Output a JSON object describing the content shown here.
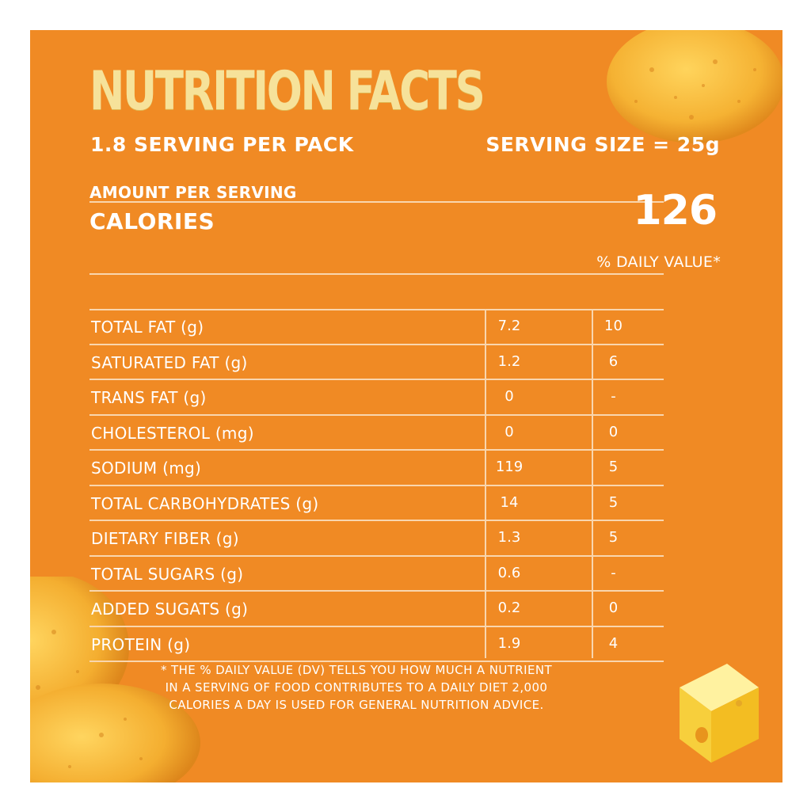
{
  "label": {
    "title": "NUTRITION FACTS",
    "servings_per_pack": "1.8 SERVING PER PACK",
    "serving_size": "SERVING SIZE = 25g",
    "amount_per_serving": "AMOUNT PER SERVING",
    "calories_label": "CALORIES",
    "calories_value": "126",
    "daily_value_header": "% DAILY VALUE*",
    "rows": [
      {
        "name": "TOTAL FAT (g)",
        "amount": "7.2",
        "dv": "10"
      },
      {
        "name": "SATURATED FAT (g)",
        "amount": "1.2",
        "dv": "6"
      },
      {
        "name": "TRANS FAT (g)",
        "amount": "0",
        "dv": "-"
      },
      {
        "name": "CHOLESTEROL (mg)",
        "amount": "0",
        "dv": "0"
      },
      {
        "name": "SODIUM (mg)",
        "amount": "119",
        "dv": "5"
      },
      {
        "name": "TOTAL CARBOHYDRATES (g)",
        "amount": "14",
        "dv": "5"
      },
      {
        "name": "DIETARY FIBER (g)",
        "amount": "1.3",
        "dv": "5"
      },
      {
        "name": "TOTAL SUGARS (g)",
        "amount": "0.6",
        "dv": "-"
      },
      {
        "name": "ADDED SUGATS (g)",
        "amount": "0.2",
        "dv": "0"
      },
      {
        "name": "PROTEIN (g)",
        "amount": "1.9",
        "dv": "4"
      }
    ],
    "footnote": [
      "* THE % DAILY VALUE (DV) TELLS YOU HOW MUCH A NUTRIENT",
      "IN A SERVING OF FOOD CONTRIBUTES TO A DAILY DIET 2,000",
      "CALORIES A DAY IS USED FOR GENERAL NUTRITION ADVICE."
    ]
  },
  "colors": {
    "background": "#f08a24",
    "title_gold": "#f6e29a",
    "text": "#ffffff",
    "rule": "#f9d6ae"
  },
  "decorations": [
    "potato-chip-image",
    "cheese-cube-image"
  ]
}
